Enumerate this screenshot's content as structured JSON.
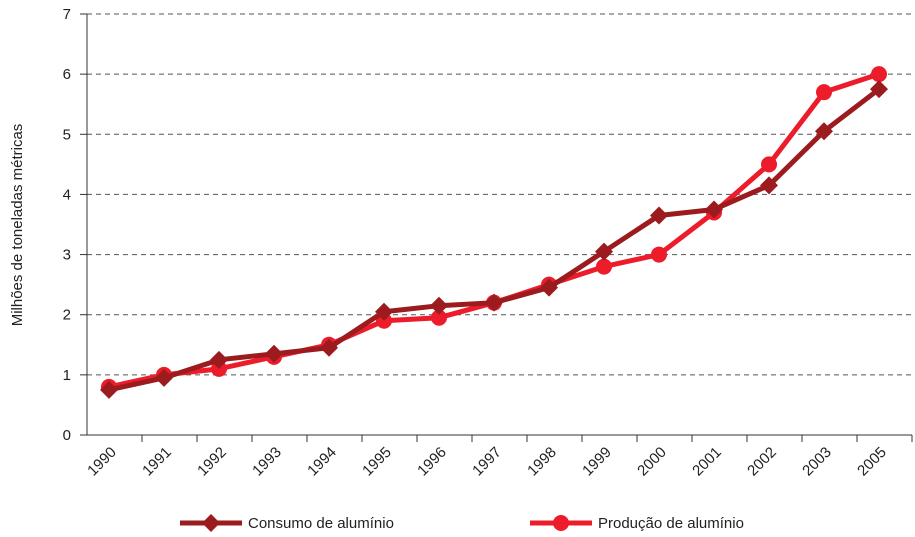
{
  "chart_data": {
    "type": "line",
    "y_label": "Milhões de toneladas métricas",
    "categories": [
      "1990",
      "1991",
      "1992",
      "1993",
      "1994",
      "1995",
      "1996",
      "1997",
      "1998",
      "1999",
      "2000",
      "2001",
      "2002",
      "2003",
      "2005"
    ],
    "series": [
      {
        "name": "Consumo de alumínio",
        "color": "#9b1b1e",
        "marker": "diamond",
        "values": [
          0.75,
          0.95,
          1.25,
          1.35,
          1.45,
          2.05,
          2.15,
          2.2,
          2.45,
          3.05,
          3.65,
          3.75,
          4.15,
          5.05,
          5.75
        ]
      },
      {
        "name": "Produção de alumínio",
        "color": "#ec1c2a",
        "marker": "circle",
        "values": [
          0.8,
          1.0,
          1.1,
          1.3,
          1.5,
          1.9,
          1.95,
          2.2,
          2.5,
          2.8,
          3.0,
          3.7,
          4.5,
          5.7,
          6.0
        ]
      }
    ],
    "ylim": [
      0,
      7
    ],
    "yticks": [
      0,
      1,
      2,
      3,
      4,
      5,
      6,
      7
    ],
    "grid": true
  }
}
